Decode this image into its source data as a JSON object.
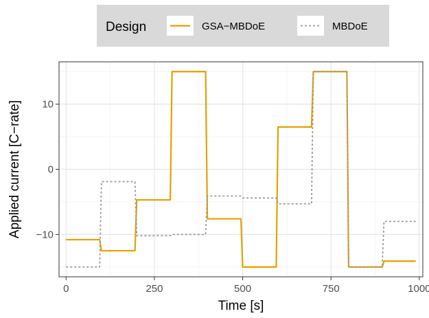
{
  "chart_data": {
    "type": "line",
    "title": "",
    "xlabel": "Time [s]",
    "ylabel": "Applied current [C−rate]",
    "xlim": [
      -20,
      1010
    ],
    "ylim": [
      -16.5,
      16.5
    ],
    "x_ticks": [
      0,
      250,
      500,
      750,
      1000
    ],
    "x_tick_labels": [
      "0",
      "250",
      "500",
      "750",
      "1000"
    ],
    "y_ticks": [
      -10,
      0,
      10
    ],
    "y_tick_labels": [
      "−10",
      "0",
      "10"
    ],
    "grid": true,
    "legend": {
      "title": "Design",
      "position": "top",
      "entries": [
        {
          "label": "GSA−MBDoE",
          "color": "#e69f00",
          "dash": "solid"
        },
        {
          "label": "MBDoE",
          "color": "#999999",
          "dash": "dotted"
        }
      ]
    },
    "series": [
      {
        "name": "GSA−MBDoE",
        "color": "#e69f00",
        "dash": "solid",
        "x": [
          0,
          95,
          100,
          195,
          200,
          295,
          300,
          395,
          400,
          495,
          500,
          595,
          600,
          695,
          700,
          795,
          800,
          895,
          900,
          990
        ],
        "y": [
          -10.8,
          -10.8,
          -12.5,
          -12.5,
          -4.7,
          -4.7,
          15.0,
          15.0,
          -7.6,
          -7.6,
          -15.0,
          -15.0,
          6.5,
          6.5,
          15.0,
          15.0,
          -15.0,
          -15.0,
          -14.1,
          -14.1
        ]
      },
      {
        "name": "MBDoE",
        "color": "#999999",
        "dash": "dotted",
        "x": [
          0,
          95,
          100,
          195,
          200,
          295,
          300,
          395,
          400,
          495,
          500,
          595,
          600,
          695,
          700,
          795,
          800,
          895,
          900,
          990
        ],
        "y": [
          -15.0,
          -15.0,
          -1.9,
          -1.9,
          -10.2,
          -10.2,
          -10.0,
          -10.0,
          -4.1,
          -4.1,
          -4.4,
          -4.4,
          -5.3,
          -5.3,
          15.0,
          15.0,
          -15.0,
          -15.0,
          -8.0,
          -8.0
        ]
      }
    ]
  }
}
